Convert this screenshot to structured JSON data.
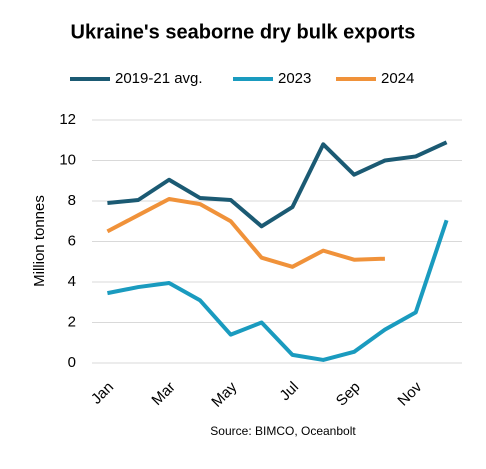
{
  "chart_data": {
    "type": "line",
    "title": "Ukraine's seaborne dry bulk exports",
    "y_label": "Million tonnes",
    "source": "Source: BIMCO, Oceanbolt",
    "categories": [
      "Jan",
      null,
      "Mar",
      null,
      "May",
      null,
      "Jul",
      null,
      "Sep",
      null,
      "Nov",
      null
    ],
    "series": [
      {
        "name": "2019-21 avg.",
        "color": "#1b5a73",
        "values": [
          7.9,
          8.05,
          9.05,
          8.15,
          8.05,
          6.75,
          7.7,
          10.8,
          9.3,
          10.0,
          10.2,
          10.9
        ]
      },
      {
        "name": "2023",
        "color": "#1a9bbf",
        "values": [
          3.45,
          3.75,
          3.95,
          3.1,
          1.4,
          2.0,
          0.4,
          0.15,
          0.55,
          1.65,
          2.5,
          7.05
        ]
      },
      {
        "name": "2024",
        "color": "#f0923a",
        "values": [
          6.5,
          7.3,
          8.1,
          7.85,
          7.0,
          5.2,
          4.75,
          5.55,
          5.1,
          5.15,
          null,
          null
        ]
      }
    ],
    "ylim": [
      0,
      12
    ],
    "yticks": [
      0,
      2,
      4,
      6,
      8,
      10,
      12
    ],
    "grid": true,
    "legend": "top"
  }
}
